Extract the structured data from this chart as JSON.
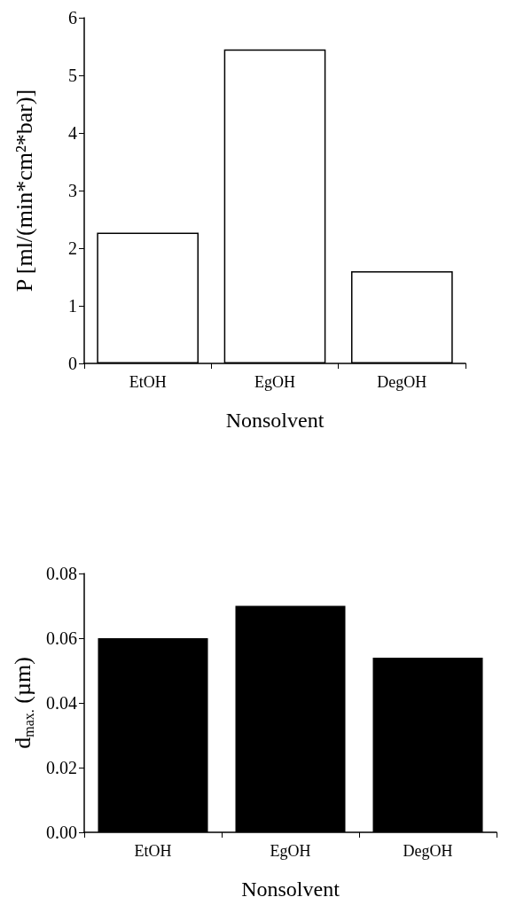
{
  "chart_data": [
    {
      "type": "bar",
      "categories": [
        "EtOH",
        "EgOH",
        "DegOH"
      ],
      "values": [
        2.27,
        5.45,
        1.6
      ],
      "color": "#ffffff",
      "xlabel": "Nonsolvent",
      "ylabel": "P [ml/(min*cm²*bar)]",
      "ylim": [
        0,
        6
      ],
      "yticks": [
        0,
        1,
        2,
        3,
        4,
        5,
        6
      ],
      "grid": false
    },
    {
      "type": "bar",
      "categories": [
        "EtOH",
        "EgOH",
        "DegOH"
      ],
      "values": [
        0.06,
        0.07,
        0.054
      ],
      "color": "#000000",
      "xlabel": "Nonsolvent",
      "ylabel": "d$_{max.}$ (µm)",
      "ylim": [
        0,
        0.08
      ],
      "yticks": [
        {
          "value": 0,
          "label": "0.00"
        },
        {
          "value": 0.02,
          "label": "0.02"
        },
        {
          "value": 0.04,
          "label": "0.04"
        },
        {
          "value": 0.06,
          "label": "0.06"
        },
        {
          "value": 0.08,
          "label": "0.08"
        }
      ],
      "grid": false
    }
  ]
}
